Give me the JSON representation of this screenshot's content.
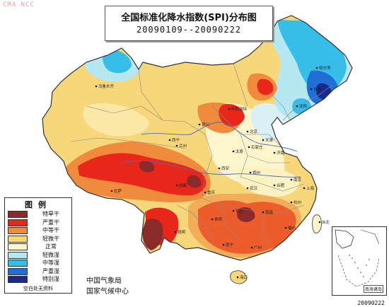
{
  "watermark": "CMA NCC",
  "title": {
    "main": "全国标准化降水指数(SPI)分布图",
    "period": "20090109--20090222"
  },
  "legend": {
    "title": "图例",
    "items": [
      {
        "label": "特旱干",
        "color": "#8b2a2a"
      },
      {
        "label": "严重干",
        "color": "#e8261a"
      },
      {
        "label": "中等干",
        "color": "#f08a3c"
      },
      {
        "label": "轻微干",
        "color": "#f7d77a"
      },
      {
        "label": "正常",
        "color": "#fdf6cc"
      },
      {
        "label": "轻微湿",
        "color": "#b6e8f2"
      },
      {
        "label": "中等湿",
        "color": "#36bde8"
      },
      {
        "label": "严重湿",
        "color": "#1f6fd6"
      },
      {
        "label": "特别湿",
        "color": "#1a2a8c"
      }
    ],
    "note": "空白处无资料"
  },
  "organizations": [
    "中国气象局",
    "国家气候中心"
  ],
  "date_stamp": "20090222",
  "inset_label": "南海诸岛",
  "cities": [
    "乌鲁木齐",
    "哈尔滨",
    "长春",
    "沈阳",
    "北京",
    "天津",
    "呼和浩特",
    "石家庄",
    "太原",
    "银川",
    "西宁",
    "兰州",
    "西安",
    "郑州",
    "济南",
    "南京",
    "上海",
    "合肥",
    "武汉",
    "成都",
    "重庆",
    "长沙",
    "南昌",
    "杭州",
    "福州",
    "贵阳",
    "昆明",
    "南宁",
    "广州",
    "海口",
    "拉萨",
    "台北"
  ]
}
